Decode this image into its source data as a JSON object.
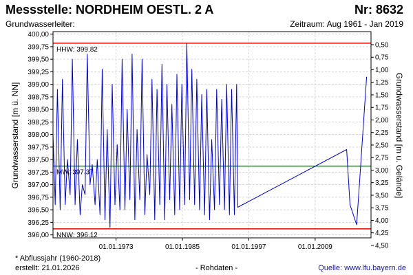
{
  "header": {
    "title": "Messstelle: NORDHEIM OESTL. 2 A",
    "number": "Nr: 8632",
    "aquifer": "Grundwasserleiter:",
    "period": "Zeitraum: Aug 1961 - Jan 2019"
  },
  "footer": {
    "note": "* Abflussjahr (1960-2018)",
    "created": "erstellt:  21.01.2026",
    "mode": "- Rohdaten -",
    "source": "Quelle:  www.lfu.bayern.de"
  },
  "colors": {
    "series": "#0000dd",
    "extreme_lines": "#e00000",
    "mean_line": "#009900",
    "grid": "#cccccc"
  },
  "chart_data": {
    "type": "line",
    "title": "",
    "xlabel": "",
    "ylabel": "Grundwasserstand [m ü. NN]",
    "y2label": "Grundwasserstand [m u. Gelände]",
    "xlim": [
      1961.6,
      2019.1
    ],
    "ylim": [
      395.94,
      400.05
    ],
    "grid": true,
    "x_tick_labels": [
      "01.01.1973",
      "01.01.1985",
      "01.01.1997",
      "01.01.2009"
    ],
    "x_ticks": [
      1973,
      1985,
      1997,
      2009
    ],
    "y_ticks": [
      396.0,
      396.25,
      396.5,
      396.75,
      397.0,
      397.25,
      397.5,
      397.75,
      398.0,
      398.25,
      398.5,
      398.75,
      399.0,
      399.25,
      399.5,
      399.75,
      400.0
    ],
    "y_tick_labels": [
      "396,00",
      "396,25",
      "396,50",
      "396,75",
      "397,00",
      "397,25",
      "397,50",
      "397,75",
      "398,00",
      "398,25",
      "398,50",
      "398,75",
      "399,00",
      "399,25",
      "399,50",
      "399,75",
      "400,00"
    ],
    "y2_ticks": [
      0.5,
      0.75,
      1.0,
      1.25,
      1.5,
      1.75,
      2.0,
      2.25,
      2.5,
      2.75,
      3.0,
      3.25,
      3.5,
      3.75,
      4.0,
      4.25,
      4.5
    ],
    "y2_tick_labels": [
      "0,50",
      "0,75",
      "1,00",
      "1,25",
      "1,50",
      "1,75",
      "2,00",
      "2,25",
      "2,50",
      "2,75",
      "3,00",
      "3,25",
      "3,50",
      "3,75",
      "4,00",
      "4,25",
      "4,50"
    ],
    "y2_reference": 400.29,
    "reference_lines": [
      {
        "label": "HHW: 399.82",
        "value": 399.82,
        "color": "#e00000"
      },
      {
        "label": "MW: 397.37",
        "value": 397.37,
        "color": "#009900"
      },
      {
        "label": "NNW: 396.12",
        "value": 396.12,
        "color": "#e00000"
      }
    ],
    "series": [
      {
        "name": "",
        "x": [
          1961.6,
          1962.0,
          1962.4,
          1962.9,
          1963.3,
          1963.8,
          1964.2,
          1964.7,
          1965.1,
          1965.6,
          1966.0,
          1966.5,
          1966.9,
          1967.4,
          1967.8,
          1968.3,
          1968.7,
          1969.2,
          1969.6,
          1970.1,
          1970.5,
          1971.0,
          1971.4,
          1971.9,
          1972.3,
          1972.8,
          1973.2,
          1973.7,
          1974.1,
          1974.6,
          1975.0,
          1975.5,
          1975.9,
          1976.4,
          1976.8,
          1977.3,
          1977.7,
          1978.2,
          1978.6,
          1979.1,
          1979.5,
          1980.0,
          1980.4,
          1980.9,
          1981.3,
          1981.8,
          1982.2,
          1982.7,
          1983.1,
          1983.6,
          1984.0,
          1984.5,
          1984.9,
          1985.4,
          1985.8,
          1986.3,
          1986.7,
          1987.2,
          1987.6,
          1988.1,
          1988.5,
          1989.0,
          1989.4,
          1989.9,
          1990.3,
          1990.8,
          1991.2,
          1991.7,
          1992.1,
          1992.6,
          1993.0,
          1993.5,
          1993.9,
          1994.4,
          1994.8,
          1995.0,
          2014.7,
          2015.3,
          2016.5,
          2017.0,
          2018.3
        ],
        "values": [
          398.0,
          396.6,
          398.9,
          396.5,
          399.1,
          396.6,
          397.5,
          396.8,
          399.5,
          396.6,
          397.9,
          396.4,
          397.0,
          396.8,
          399.6,
          397.0,
          397.4,
          396.6,
          397.5,
          396.4,
          399.3,
          396.3,
          398.1,
          396.15,
          399.0,
          396.6,
          397.8,
          396.5,
          399.5,
          396.5,
          398.5,
          396.7,
          399.6,
          396.3,
          398.1,
          396.7,
          399.5,
          396.4,
          397.6,
          396.8,
          399.1,
          396.3,
          398.9,
          396.6,
          399.4,
          396.3,
          399.0,
          396.7,
          398.6,
          396.4,
          399.2,
          396.5,
          399.0,
          396.6,
          399.82,
          396.7,
          399.3,
          396.6,
          399.1,
          396.5,
          398.8,
          396.4,
          398.9,
          396.3,
          397.9,
          396.5,
          398.9,
          396.6,
          398.7,
          396.5,
          399.0,
          396.4,
          398.9,
          396.4,
          399.0,
          396.55,
          397.7,
          396.6,
          396.2,
          397.0,
          399.15
        ]
      }
    ]
  }
}
